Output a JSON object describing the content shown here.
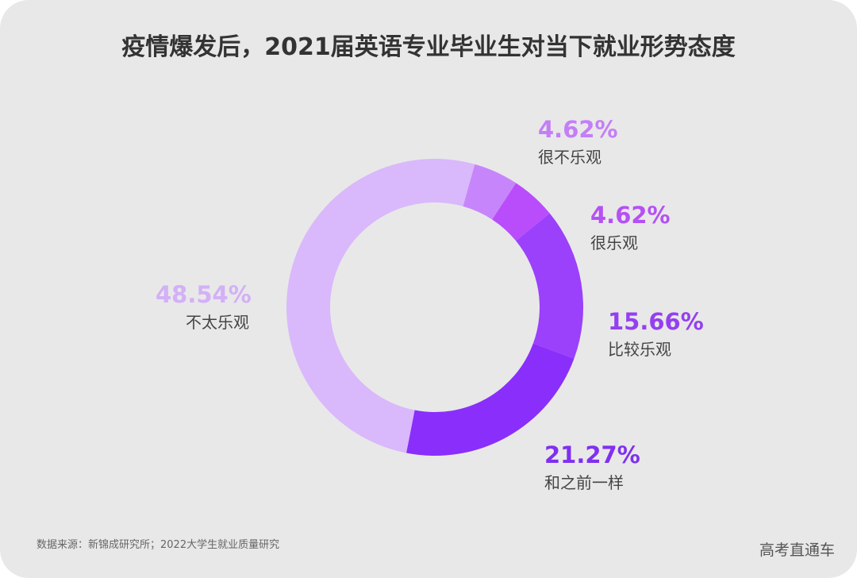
{
  "title": "疫情爆发后，2021届英语专业毕业生对当下就业形势态度",
  "chart_data": {
    "type": "pie",
    "donut": true,
    "title": "疫情爆发后，2021届英语专业毕业生对当下就业形势态度",
    "slices": [
      {
        "label": "很不乐观",
        "value": 4.62,
        "display": "4.62%",
        "color": "#c785fb",
        "label_color": "#c47ef8"
      },
      {
        "label": "很乐观",
        "value": 4.62,
        "display": "4.62%",
        "color": "#b94dfb",
        "label_color": "#b550f5"
      },
      {
        "label": "比较乐观",
        "value": 15.66,
        "display": "15.66%",
        "color": "#9b40fb",
        "label_color": "#9440f0"
      },
      {
        "label": "和之前一样",
        "value": 21.27,
        "display": "21.27%",
        "color": "#8a2efb",
        "label_color": "#7f30f0"
      },
      {
        "label": "不太乐观",
        "value": 48.54,
        "display": "48.54%",
        "color": "#d9b8fb",
        "label_color": "#d3b0f7"
      }
    ]
  },
  "footer": {
    "source": "数据来源：新锦成研究所；2022大学生就业质量研究",
    "brand": "高考直通车"
  }
}
